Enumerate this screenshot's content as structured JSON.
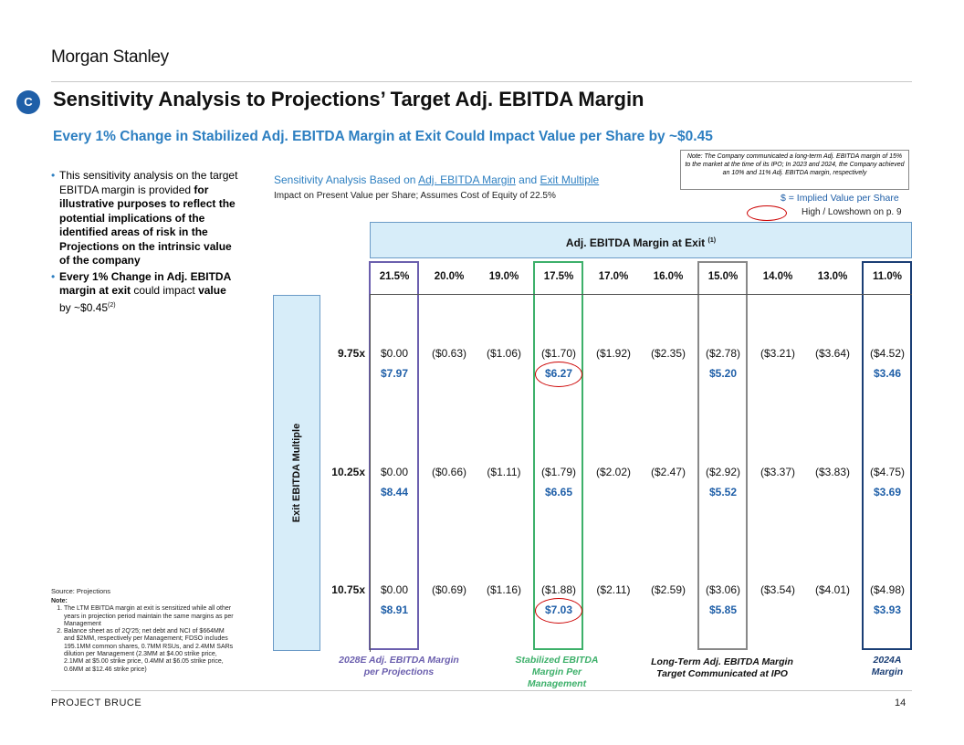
{
  "brand": "Morgan Stanley",
  "section_letter": "C",
  "title": "Sensitivity Analysis to Projections’ Target Adj. EBITDA Margin",
  "subtitle": "Every 1% Change in Stabilized Adj. EBITDA Margin at Exit Could Impact Value per Share by ~$0.45",
  "note_box": "Note: The Company communicated a long-term Adj. EBITDA margin of 15% to the market at the time of its IPO; In 2023 and 2024, the Company achieved an 10% and 11% Adj. EBITDA margin, respectively",
  "bullets": {
    "b1_pre": "This sensitivity analysis on the target EBITDA margin is provided ",
    "b1_bold": "for illustrative purposes to reflect the potential implications of the identified areas of risk in the Projections on the intrinsic value of the company",
    "b2_bold1": "Every 1% Change in Adj. EBITDA margin at exit",
    "b2_mid": " could impact ",
    "b2_bold2": "value",
    "b2_mid2": " by ~$0.45",
    "b2_sup": "(2)"
  },
  "sens": {
    "title_pre": "Sensitivity Analysis Based on ",
    "title_link1": "Adj. EBITDA Margin",
    "title_mid": " and ",
    "title_link2": "Exit Multiple",
    "subtitle": "Impact on Present Value per Share; Assumes Cost of Equity of 22.5%"
  },
  "legend": {
    "implied": "$ = Implied Value per Share",
    "highlow": "High / Lowshown on p. 9"
  },
  "table": {
    "header": "Adj. EBITDA Margin at Exit",
    "header_sup": "(1)",
    "row_axis_label": "Exit EBITDA Multiple",
    "columns": [
      "21.5%",
      "20.0%",
      "19.0%",
      "17.5%",
      "17.0%",
      "16.0%",
      "15.0%",
      "14.0%",
      "13.0%",
      "11.0%"
    ],
    "rows": [
      {
        "label": "9.75x",
        "values": [
          "$0.00",
          "($0.63)",
          "($1.06)",
          "($1.70)",
          "($1.92)",
          "($2.35)",
          "($2.78)",
          "($3.21)",
          "($3.64)",
          "($4.52)"
        ],
        "implied": [
          "$7.97",
          "",
          "",
          "$6.27",
          "",
          "",
          "$5.20",
          "",
          "",
          "$3.46"
        ]
      },
      {
        "label": "10.25x",
        "values": [
          "$0.00",
          "($0.66)",
          "($1.11)",
          "($1.79)",
          "($2.02)",
          "($2.47)",
          "($2.92)",
          "($3.37)",
          "($3.83)",
          "($4.75)"
        ],
        "implied": [
          "$8.44",
          "",
          "",
          "$6.65",
          "",
          "",
          "$5.52",
          "",
          "",
          "$3.69"
        ]
      },
      {
        "label": "10.75x",
        "values": [
          "$0.00",
          "($0.69)",
          "($1.16)",
          "($1.88)",
          "($2.11)",
          "($2.59)",
          "($3.06)",
          "($3.54)",
          "($4.01)",
          "($4.98)"
        ],
        "implied": [
          "$8.91",
          "",
          "",
          "$7.03",
          "",
          "",
          "$5.85",
          "",
          "",
          "$3.93"
        ]
      }
    ]
  },
  "captions": {
    "purple": "2028E Adj. EBITDA Margin per Projections",
    "green": "Stabilized EBITDA Margin Per Management",
    "gray": "Long-Term Adj. EBITDA Margin Target Communicated at IPO",
    "navy": "2024A Margin"
  },
  "colors": {
    "purple": "#6b5fae",
    "green": "#3db06a",
    "gray": "#888888",
    "navy": "#1a3e75",
    "accent_blue": "#2d7fc1",
    "implied_blue": "#1f5fa8",
    "oval_red": "#cc0000"
  },
  "source": "Source: Projections",
  "notes_title": "Note:",
  "notes": [
    "The LTM EBITDA margin at exit is sensitized while all other years in projection period maintain the same margins as per Management",
    "Balance sheet as of 2Q'25; net debt and NCI of $664MM and $2MM, respectively per Management; FDSO includes 195.1MM common shares, 0.7MM RSUs, and 2.4MM SARs dilution per Management (2.3MM at $4.00 strike price, 2.1MM at $5.00 strike price, 0.4MM at $6.05 strike price, 0.6MM at $12.46 strike price)"
  ],
  "footer": "PROJECT BRUCE",
  "page_number": "14"
}
